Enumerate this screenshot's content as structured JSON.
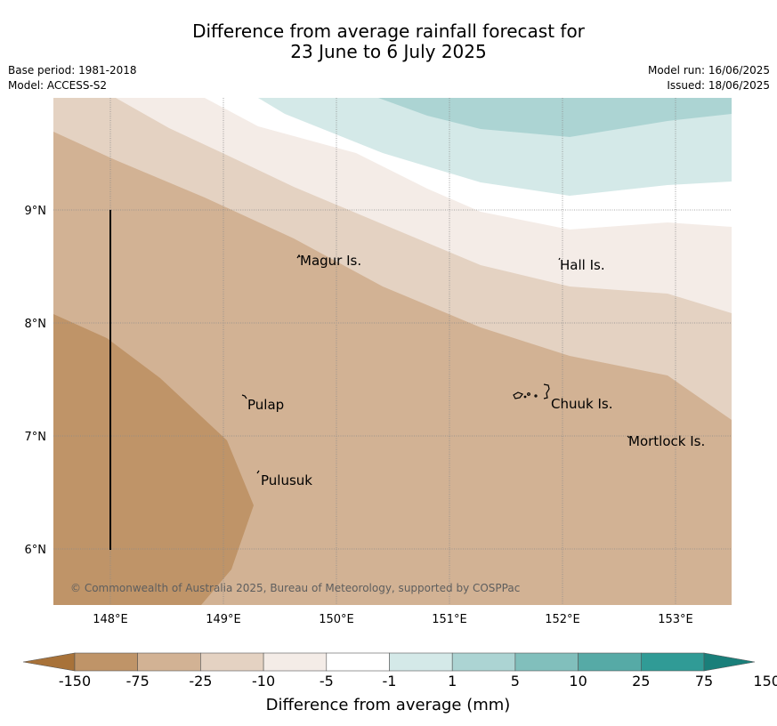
{
  "title": {
    "line1": "Difference from average rainfall forecast for",
    "line2": "23 June to 6 July 2025"
  },
  "meta": {
    "base_period": "Base period: 1981-2018",
    "model": "Model: ACCESS-S2",
    "model_run": "Model run: 16/06/2025",
    "issued": "Issued: 18/06/2025"
  },
  "map": {
    "lon_ticks": [
      "148°E",
      "149°E",
      "150°E",
      "151°E",
      "152°E",
      "153°E"
    ],
    "lat_ticks": [
      "9°N",
      "8°N",
      "7°N",
      "6°N"
    ],
    "places": [
      {
        "name": "Magur Is.",
        "lon": 149.7,
        "lat": 8.55
      },
      {
        "name": "Hall Is.",
        "lon": 151.98,
        "lat": 8.52
      },
      {
        "name": "Pulap",
        "lon": 149.2,
        "lat": 7.3
      },
      {
        "name": "Chuuk Is.",
        "lon": 151.85,
        "lat": 7.31
      },
      {
        "name": "Mortlock Is.",
        "lon": 152.58,
        "lat": 6.96
      },
      {
        "name": "Pulusuk",
        "lon": 149.3,
        "lat": 6.64
      }
    ],
    "copyright": "© Commonwealth of Australia 2025, Bureau of Meteorology, supported by COSPPac"
  },
  "legend": {
    "title": "Difference from average (mm)",
    "labels": [
      "-150",
      "-75",
      "-25",
      "-10",
      "-5",
      "-1",
      "1",
      "5",
      "10",
      "25",
      "75",
      "150"
    ],
    "colors": [
      "#a87239",
      "#bf9468",
      "#d2b294",
      "#e4d2c2",
      "#f4ece7",
      "#ffffff",
      "#d4e9e8",
      "#acd4d3",
      "#81bfbc",
      "#56aaa6",
      "#309b96",
      "#1a7f7a"
    ]
  }
}
